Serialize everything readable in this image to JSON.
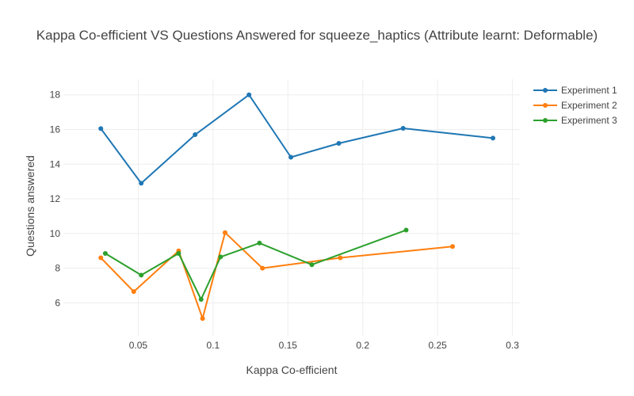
{
  "chart_data": {
    "type": "line",
    "title": "Kappa Co-efficient VS Questions Answered for squeeze_haptics (Attribute learnt: Deformable)",
    "xlabel": "Kappa Co-efficient",
    "ylabel": "Questions answered",
    "xlim": [
      0.0,
      0.305
    ],
    "ylim": [
      4.1,
      18.9
    ],
    "xticks": [
      0.05,
      0.1,
      0.15,
      0.2,
      0.25,
      0.3
    ],
    "xtick_labels": [
      "0.05",
      "0.1",
      "0.15",
      "0.2",
      "0.25",
      "0.3"
    ],
    "yticks": [
      6,
      8,
      10,
      12,
      14,
      16,
      18
    ],
    "ytick_labels": [
      "6",
      "8",
      "10",
      "12",
      "14",
      "16",
      "18"
    ],
    "grid": true,
    "legend_position": "top-right",
    "series": [
      {
        "name": "Experiment 1",
        "color": "#1f77b4",
        "x": [
          0.025,
          0.052,
          0.088,
          0.124,
          0.152,
          0.184,
          0.227,
          0.287
        ],
        "y": [
          16.05,
          12.9,
          15.7,
          18.0,
          14.4,
          15.2,
          16.07,
          15.5
        ]
      },
      {
        "name": "Experiment 2",
        "color": "#ff7f0e",
        "x": [
          0.025,
          0.047,
          0.077,
          0.093,
          0.108,
          0.133,
          0.185,
          0.26
        ],
        "y": [
          8.6,
          6.65,
          9.0,
          5.1,
          10.05,
          8.0,
          8.6,
          9.25
        ]
      },
      {
        "name": "Experiment 3",
        "color": "#2ca02c",
        "x": [
          0.028,
          0.052,
          0.077,
          0.092,
          0.105,
          0.131,
          0.166,
          0.229
        ],
        "y": [
          8.85,
          7.6,
          8.85,
          6.2,
          8.65,
          9.45,
          8.2,
          10.2
        ]
      }
    ]
  }
}
